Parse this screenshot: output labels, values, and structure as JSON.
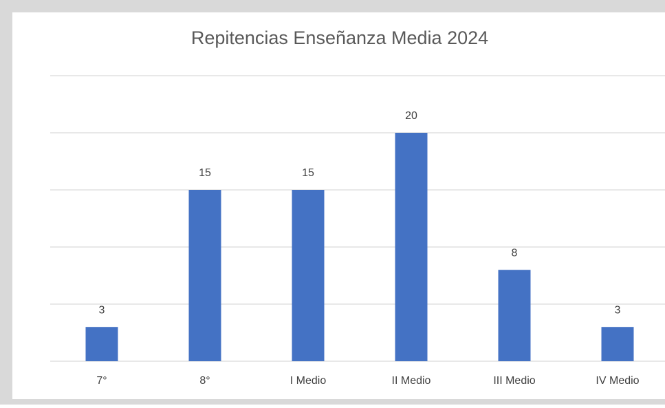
{
  "chart_data": {
    "type": "bar",
    "title": "Repitencias Enseñanza Media 2024",
    "categories": [
      "7°",
      "8°",
      "I Medio",
      "II Medio",
      "III Medio",
      "IV Medio"
    ],
    "values": [
      3,
      15,
      15,
      20,
      8,
      3
    ],
    "color": "#4472c4",
    "ylim": [
      0,
      25
    ],
    "yticks": [
      0,
      5,
      10,
      15,
      20,
      25
    ],
    "grid": true
  }
}
